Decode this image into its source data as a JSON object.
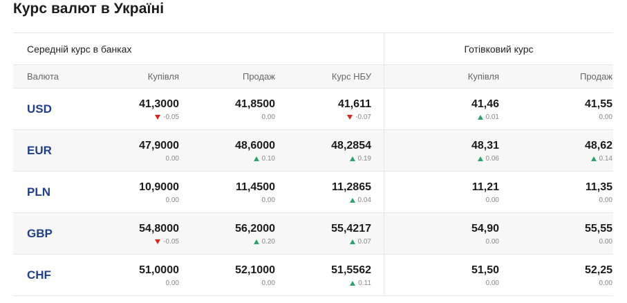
{
  "page": {
    "title": "Курс валют в Україні"
  },
  "groups": {
    "banks": "Середній курс в банках",
    "cash": "Готівковий курс"
  },
  "headers": {
    "currency": "Валюта",
    "buy": "Купівля",
    "sell": "Продаж",
    "nbu": "Курс НБУ",
    "cash_buy": "Купівля",
    "cash_sell": "Продаж"
  },
  "colors": {
    "currency_code": "#1f3e8c",
    "up": "#2aa36b",
    "down": "#d9261c"
  },
  "rows": [
    {
      "code": "USD",
      "buy": {
        "value": "41,3000",
        "change": "-0.05",
        "dir": "down"
      },
      "sell": {
        "value": "41,8500",
        "change": "0.00",
        "dir": "none"
      },
      "nbu": {
        "value": "41,611",
        "change": "-0.07",
        "dir": "down"
      },
      "cash_buy": {
        "value": "41,46",
        "change": "0.01",
        "dir": "up"
      },
      "cash_sell": {
        "value": "41,55",
        "change": "0.00",
        "dir": "none"
      }
    },
    {
      "code": "EUR",
      "buy": {
        "value": "47,9000",
        "change": "0.00",
        "dir": "none"
      },
      "sell": {
        "value": "48,6000",
        "change": "0.10",
        "dir": "up"
      },
      "nbu": {
        "value": "48,2854",
        "change": "0.19",
        "dir": "up"
      },
      "cash_buy": {
        "value": "48,31",
        "change": "0.06",
        "dir": "up"
      },
      "cash_sell": {
        "value": "48,62",
        "change": "0.14",
        "dir": "up"
      }
    },
    {
      "code": "PLN",
      "buy": {
        "value": "10,9000",
        "change": "0.00",
        "dir": "none"
      },
      "sell": {
        "value": "11,4500",
        "change": "0.00",
        "dir": "none"
      },
      "nbu": {
        "value": "11,2865",
        "change": "0.04",
        "dir": "up"
      },
      "cash_buy": {
        "value": "11,21",
        "change": "0.00",
        "dir": "none"
      },
      "cash_sell": {
        "value": "11,35",
        "change": "0.00",
        "dir": "none"
      }
    },
    {
      "code": "GBP",
      "buy": {
        "value": "54,8000",
        "change": "-0.05",
        "dir": "down"
      },
      "sell": {
        "value": "56,2000",
        "change": "0.20",
        "dir": "up"
      },
      "nbu": {
        "value": "55,4217",
        "change": "0.07",
        "dir": "up"
      },
      "cash_buy": {
        "value": "54,90",
        "change": "0.00",
        "dir": "none"
      },
      "cash_sell": {
        "value": "55,55",
        "change": "0.00",
        "dir": "none"
      }
    },
    {
      "code": "CHF",
      "buy": {
        "value": "51,0000",
        "change": "0.00",
        "dir": "none"
      },
      "sell": {
        "value": "52,1000",
        "change": "0.00",
        "dir": "none"
      },
      "nbu": {
        "value": "51,5562",
        "change": "0.11",
        "dir": "up"
      },
      "cash_buy": {
        "value": "51,50",
        "change": "0.00",
        "dir": "none"
      },
      "cash_sell": {
        "value": "52,25",
        "change": "0.00",
        "dir": "none"
      }
    }
  ]
}
